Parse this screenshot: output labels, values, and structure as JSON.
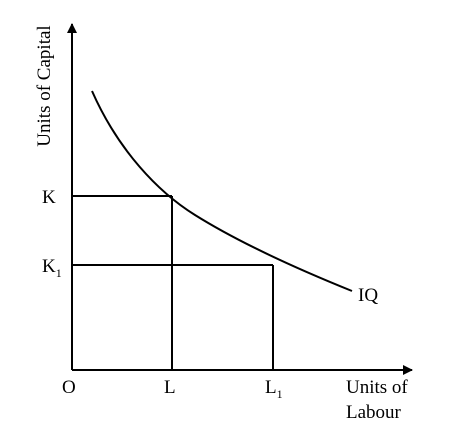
{
  "diagram": {
    "y_axis_label": "Units of Capital",
    "x_axis_label_line1": "Units of",
    "x_axis_label_line2": "Labour",
    "origin_label": "O",
    "curve_label": "IQ",
    "capital_points": [
      {
        "main": "K",
        "sub": ""
      },
      {
        "main": "K",
        "sub": "1"
      }
    ],
    "labour_points": [
      {
        "main": "L",
        "sub": ""
      },
      {
        "main": "L",
        "sub": "1"
      }
    ],
    "line_color": "#000000"
  }
}
